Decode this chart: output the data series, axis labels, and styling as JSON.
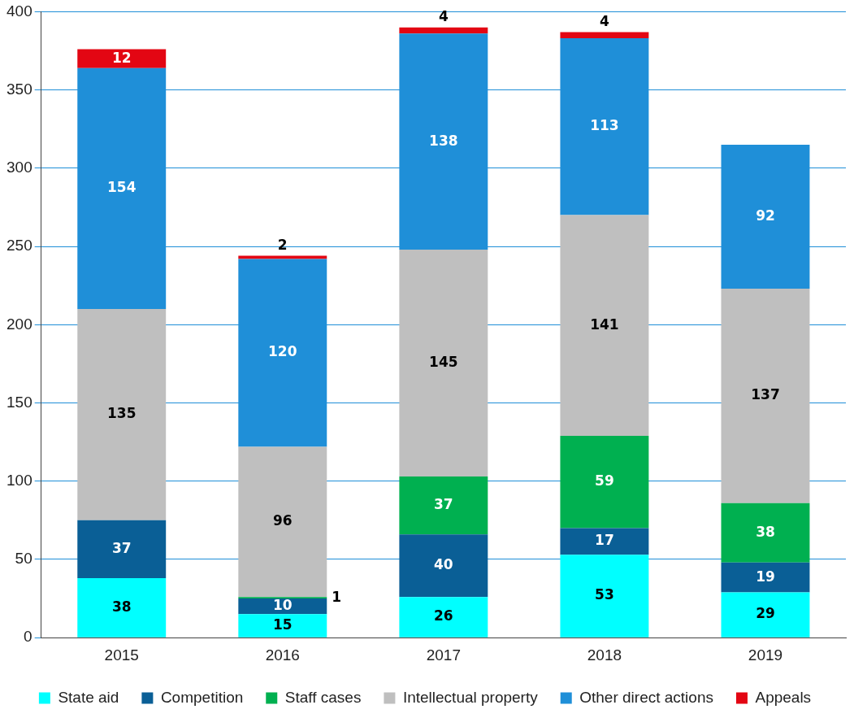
{
  "chart_data": {
    "type": "bar",
    "stacked": true,
    "categories": [
      "2015",
      "2016",
      "2017",
      "2018",
      "2019"
    ],
    "series": [
      {
        "name": "State aid",
        "color": "#00ffff",
        "values": [
          38,
          15,
          26,
          53,
          29
        ]
      },
      {
        "name": "Competition",
        "color": "#0a5f96",
        "values": [
          37,
          10,
          40,
          17,
          19
        ]
      },
      {
        "name": "Staff cases",
        "color": "#00b050",
        "values": [
          null,
          1,
          37,
          59,
          38
        ]
      },
      {
        "name": "Intellectual property",
        "color": "#bfbfbf",
        "values": [
          135,
          96,
          145,
          141,
          137
        ]
      },
      {
        "name": "Other direct actions",
        "color": "#1f8fd8",
        "values": [
          154,
          120,
          138,
          113,
          92
        ]
      },
      {
        "name": "Appeals",
        "color": "#e30613",
        "values": [
          12,
          2,
          4,
          4,
          null
        ]
      }
    ],
    "ylim": [
      0,
      400
    ],
    "yticks": [
      0,
      50,
      100,
      150,
      200,
      250,
      300,
      350,
      400
    ],
    "grid": "y",
    "legend": "bottom",
    "data_labels": true
  }
}
